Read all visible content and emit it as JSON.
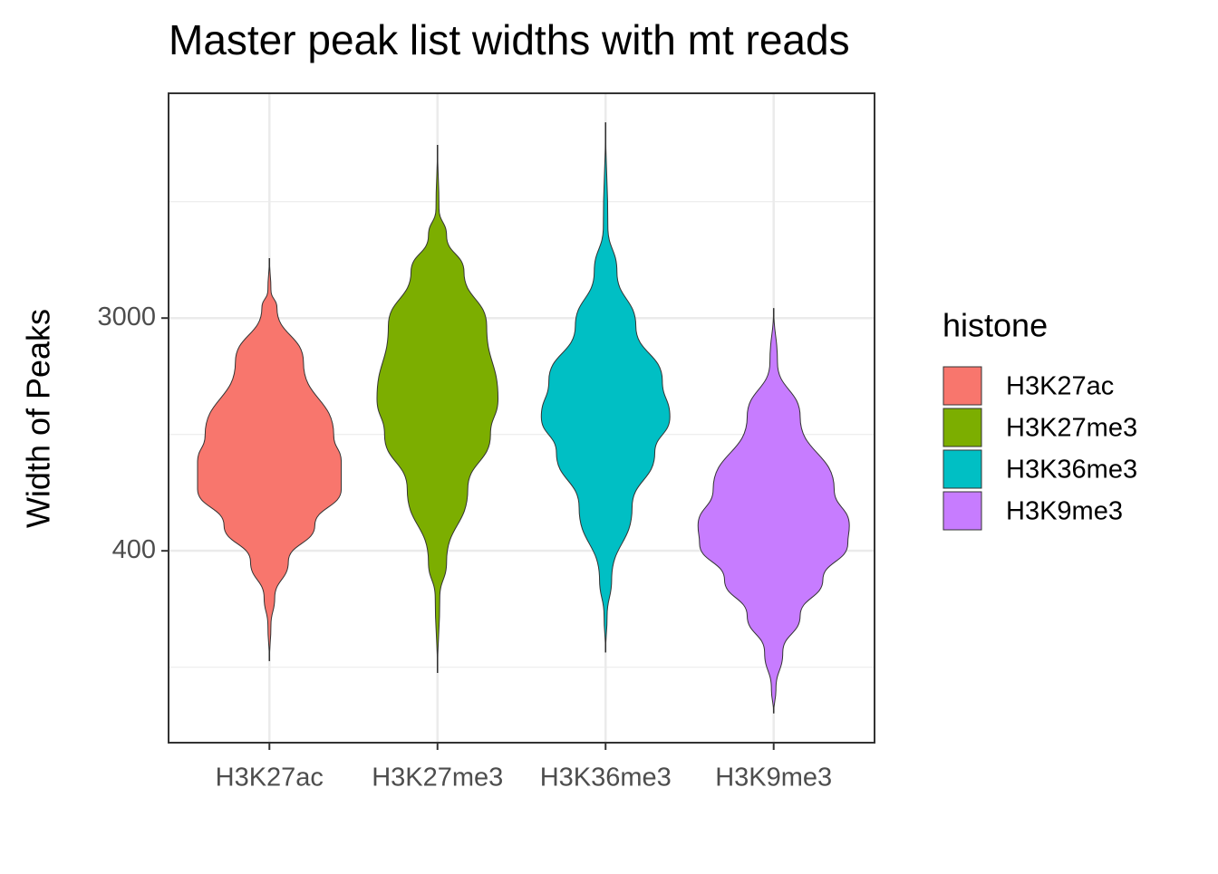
{
  "chart_data": {
    "type": "violin",
    "title": "Master peak list widths with mt reads",
    "y_label": "Width of Peaks",
    "legend_title": "histone",
    "categories": [
      "H3K27ac",
      "H3K27me3",
      "H3K36me3",
      "H3K9me3"
    ],
    "log_y": true,
    "grid": true,
    "ylim": [
      76,
      21000
    ],
    "yticks": [
      400,
      3000
    ],
    "series": [
      {
        "name": "H3K27ac",
        "color": "#f8766d",
        "min": 154,
        "max": 5040,
        "density": {
          "y": [
            3830,
            3270,
            2045,
            1091,
            863,
            682,
            498,
            364,
            266,
            210
          ],
          "width": [
            0.02,
            0.1,
            0.45,
            0.85,
            0.95,
            0.95,
            0.6,
            0.25,
            0.07,
            0.02
          ]
        }
      },
      {
        "name": "H3K27me3",
        "color": "#7cae00",
        "min": 139,
        "max": 13430,
        "density": {
          "y": [
            7745,
            6120,
            4480,
            2800,
            1494,
            1091,
            682,
            364,
            266
          ],
          "width": [
            0.02,
            0.12,
            0.35,
            0.65,
            0.8,
            0.7,
            0.4,
            0.12,
            0.03
          ]
        }
      },
      {
        "name": "H3K36me3",
        "color": "#00bfc4",
        "min": 166,
        "max": 16330,
        "density": {
          "y": [
            6620,
            4480,
            2800,
            1746,
            1276,
            933,
            582,
            311,
            228
          ],
          "width": [
            0.03,
            0.15,
            0.4,
            0.75,
            0.85,
            0.65,
            0.35,
            0.08,
            0.02
          ]
        }
      },
      {
        "name": "H3K9me3",
        "color": "#c77cff",
        "min": 98,
        "max": 3270,
        "density": {
          "y": [
            2045,
            1276,
            682,
            498,
            426,
            311,
            228,
            166,
            121
          ],
          "width": [
            0.05,
            0.35,
            0.8,
            1.0,
            0.98,
            0.65,
            0.35,
            0.12,
            0.03
          ]
        }
      }
    ]
  }
}
